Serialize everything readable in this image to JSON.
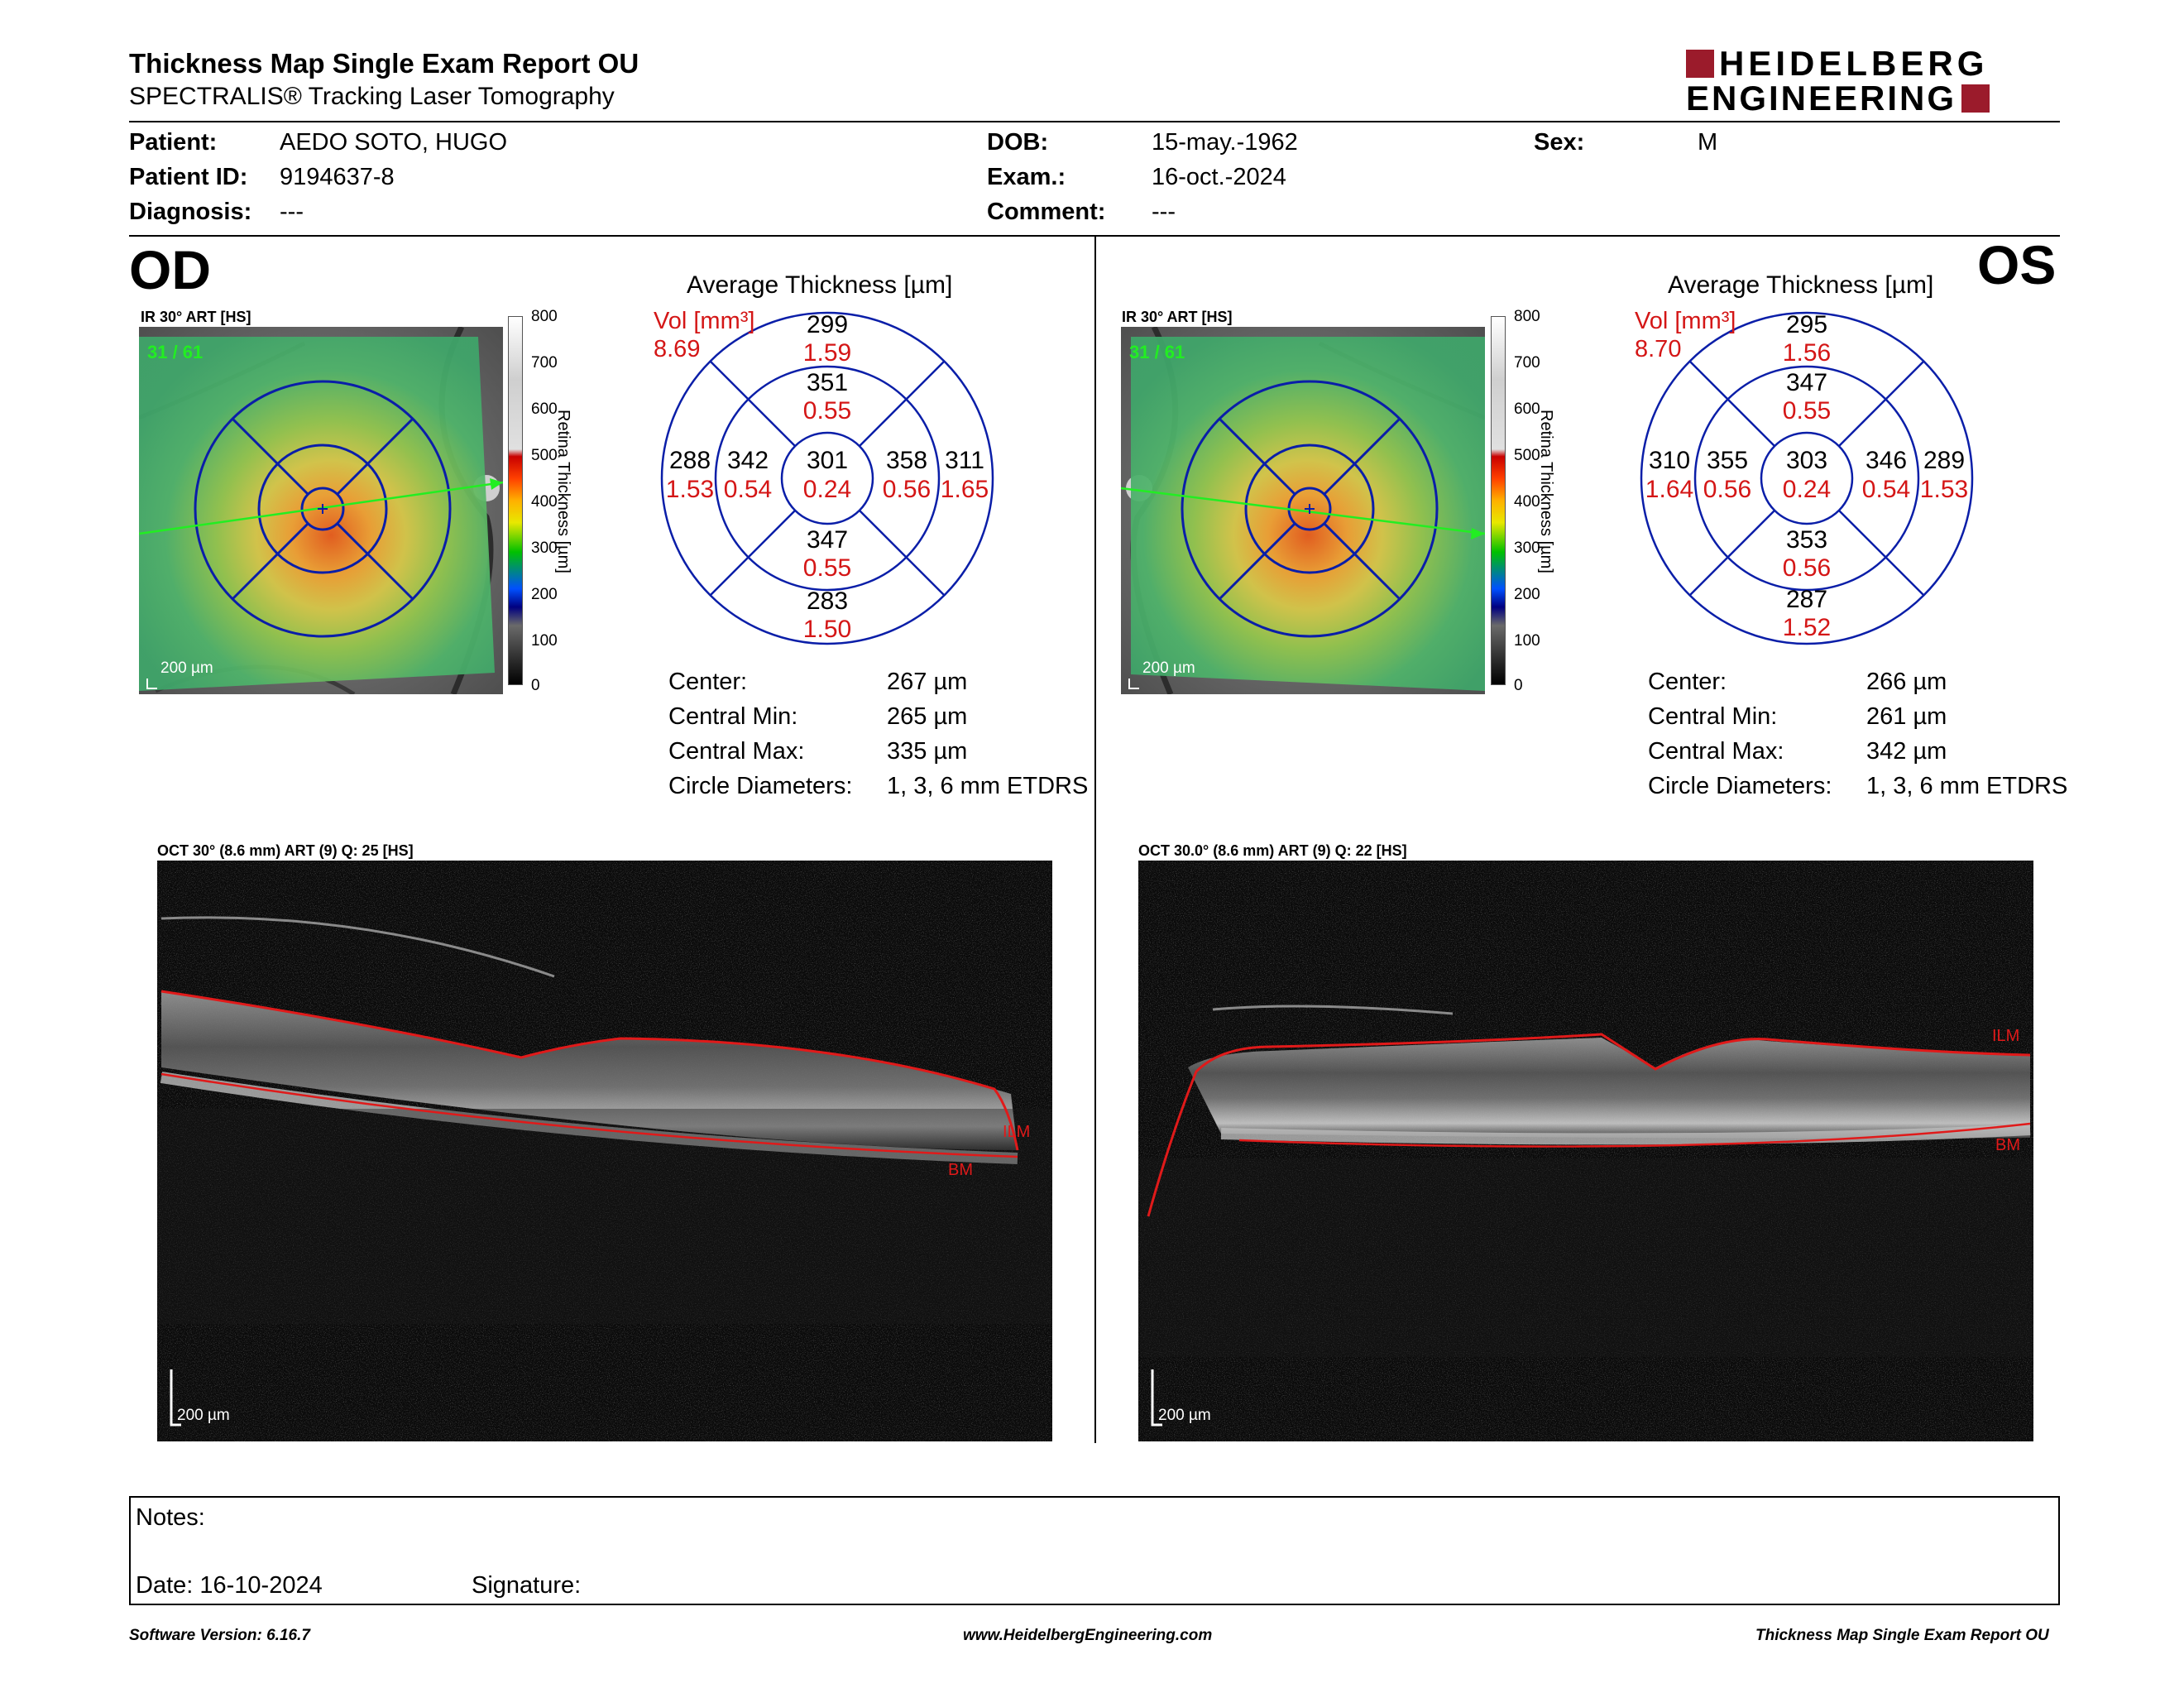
{
  "header": {
    "title": "Thickness Map Single Exam Report OU",
    "subtitle": "SPECTRALIS® Tracking Laser Tomography",
    "logo_line1": "HEIDELBERG",
    "logo_line2": "ENGINEERING",
    "brand_color": "#9b1b2b"
  },
  "patient": {
    "patient_label": "Patient:",
    "patient_value": "AEDO SOTO, HUGO",
    "id_label": "Patient ID:",
    "id_value": "9194637-8",
    "diagnosis_label": "Diagnosis:",
    "diagnosis_value": "---",
    "dob_label": "DOB:",
    "dob_value": "15-may.-1962",
    "exam_label": "Exam.:",
    "exam_value": "16-oct.-2024",
    "comment_label": "Comment:",
    "comment_value": "---",
    "sex_label": "Sex:",
    "sex_value": "M"
  },
  "od": {
    "eye": "OD",
    "ir_label": "IR 30° ART [HS]",
    "frames": "31 / 61",
    "scale": "200 µm",
    "colorbar_title": "Retina Thickness [µm]",
    "colorbar_ticks": [
      "800",
      "700",
      "600",
      "500",
      "400",
      "300",
      "200",
      "100",
      "0"
    ],
    "avg_title": "Average Thickness [µm]",
    "vol_label": "Vol [mm³]",
    "vol_value": "8.69",
    "sectors": {
      "outer_sup": {
        "t": "299",
        "v": "1.59"
      },
      "inner_sup": {
        "t": "351",
        "v": "0.55"
      },
      "center": {
        "t": "301",
        "v": "0.24"
      },
      "inner_left": {
        "t": "342",
        "v": "0.54"
      },
      "inner_right": {
        "t": "358",
        "v": "0.56"
      },
      "outer_left": {
        "t": "288",
        "v": "1.53"
      },
      "outer_right": {
        "t": "311",
        "v": "1.65"
      },
      "inner_inf": {
        "t": "347",
        "v": "0.55"
      },
      "outer_inf": {
        "t": "283",
        "v": "1.50"
      }
    },
    "stats": {
      "center_label": "Center:",
      "center_value": "267 µm",
      "min_label": "Central Min:",
      "min_value": "265 µm",
      "max_label": "Central Max:",
      "max_value": "335 µm",
      "diam_label": "Circle Diameters:",
      "diam_value": "1, 3, 6 mm ETDRS"
    },
    "oct_label": "OCT 30° (8.6 mm) ART (9) Q: 25 [HS]",
    "oct_scale": "200 µm",
    "ilm": "ILM",
    "bm": "BM"
  },
  "os": {
    "eye": "OS",
    "ir_label": "IR 30° ART [HS]",
    "frames": "31 / 61",
    "scale": "200 µm",
    "colorbar_title": "Retina Thickness [µm]",
    "colorbar_ticks": [
      "800",
      "700",
      "600",
      "500",
      "400",
      "300",
      "200",
      "100",
      "0"
    ],
    "avg_title": "Average Thickness [µm]",
    "vol_label": "Vol [mm³]",
    "vol_value": "8.70",
    "sectors": {
      "outer_sup": {
        "t": "295",
        "v": "1.56"
      },
      "inner_sup": {
        "t": "347",
        "v": "0.55"
      },
      "center": {
        "t": "303",
        "v": "0.24"
      },
      "inner_left": {
        "t": "355",
        "v": "0.56"
      },
      "inner_right": {
        "t": "346",
        "v": "0.54"
      },
      "outer_left": {
        "t": "310",
        "v": "1.64"
      },
      "outer_right": {
        "t": "289",
        "v": "1.53"
      },
      "inner_inf": {
        "t": "353",
        "v": "0.56"
      },
      "outer_inf": {
        "t": "287",
        "v": "1.52"
      }
    },
    "stats": {
      "center_label": "Center:",
      "center_value": "266 µm",
      "min_label": "Central Min:",
      "min_value": "261 µm",
      "max_label": "Central Max:",
      "max_value": "342 µm",
      "diam_label": "Circle Diameters:",
      "diam_value": "1, 3, 6 mm ETDRS"
    },
    "oct_label": "OCT 30.0° (8.6 mm) ART (9) Q: 22 [HS]",
    "oct_scale": "200 µm",
    "ilm": "ILM",
    "bm": "BM"
  },
  "notes": {
    "notes_label": "Notes:",
    "date_label": "Date: 16-10-2024",
    "signature_label": "Signature:"
  },
  "footer": {
    "software": "Software Version: 6.16.7",
    "website": "www.HeidelbergEngineering.com",
    "report": "Thickness Map Single Exam Report OU"
  },
  "colors": {
    "sector_blue": "#0a1ea8",
    "volume_red": "#d41616",
    "segmentation_red": "#e01a1a",
    "scan_green": "#22ee22"
  }
}
